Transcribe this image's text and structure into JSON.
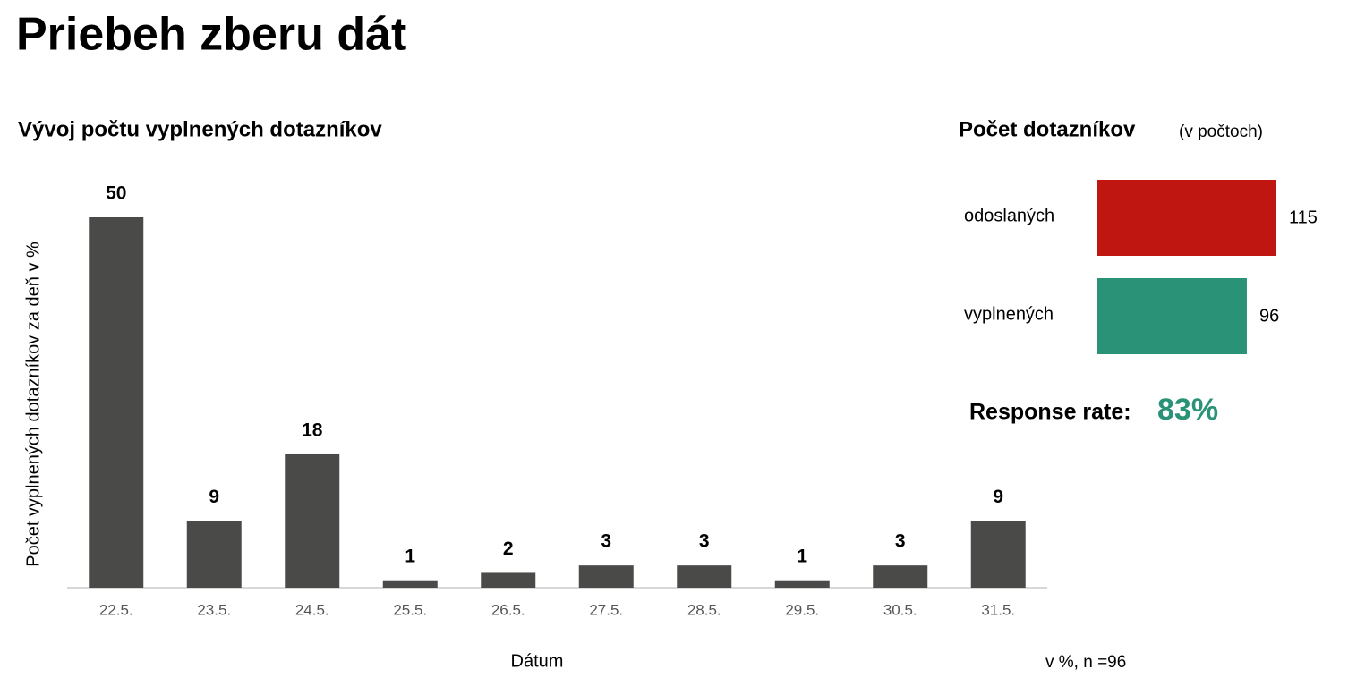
{
  "title": "Priebeh zberu dát",
  "chart_data": [
    {
      "type": "bar",
      "title": "Vývoj počtu vyplnených dotazníkov",
      "x_label": "Dátum",
      "y_label": "Počet vyplnených dotazníkov za deň v %",
      "categories": [
        "22.5.",
        "23.5.",
        "24.5.",
        "25.5.",
        "26.5.",
        "27.5.",
        "28.5.",
        "29.5.",
        "30.5.",
        "31.5."
      ],
      "values": [
        50,
        9,
        18,
        1,
        2,
        3,
        3,
        1,
        3,
        9
      ],
      "color": "#4a4a48",
      "ylim": [
        0,
        50
      ],
      "note": "v %, n =96"
    },
    {
      "type": "hbar",
      "title": "Počet dotazníkov",
      "subtitle": "(v počtoch)",
      "categories": [
        "odoslaných",
        "vyplnených"
      ],
      "values": [
        115,
        96
      ],
      "colors": [
        "#c01612",
        "#2a9276"
      ],
      "xlim": [
        0,
        115
      ]
    }
  ],
  "response_rate": {
    "label": "Response rate:",
    "value": "83%"
  }
}
